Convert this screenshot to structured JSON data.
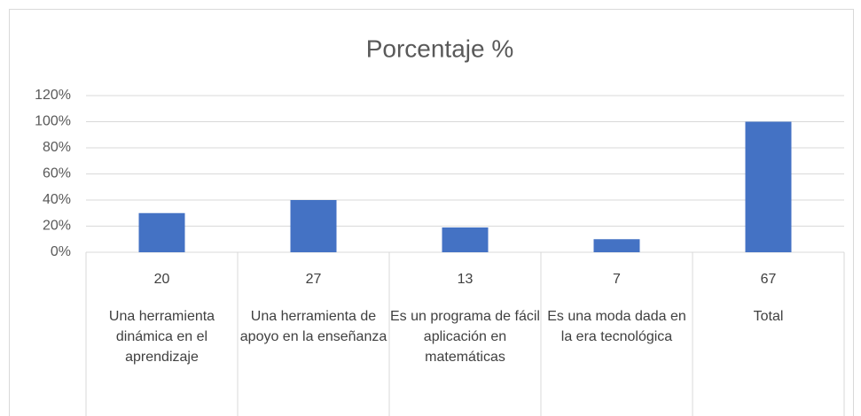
{
  "chart_data": {
    "type": "bar",
    "title": "Porcentaje  %",
    "counts": [
      20,
      27,
      13,
      7,
      67
    ],
    "categories": [
      "Una herramienta dinámica en el aprendizaje",
      "Una herramienta de apoyo en la enseñanza",
      "Es un programa de fácil aplicación en matemáticas",
      "Es una moda dada en la era tecnológica",
      "Total"
    ],
    "values": [
      30,
      40,
      19,
      10,
      100
    ],
    "color": "#4472c4",
    "ylim": [
      0,
      120
    ],
    "yticks": [
      {
        "value": 0,
        "label": "0%"
      },
      {
        "value": 20,
        "label": "20%"
      },
      {
        "value": 40,
        "label": "40%"
      },
      {
        "value": 60,
        "label": "60%"
      },
      {
        "value": 80,
        "label": "80%"
      },
      {
        "value": 100,
        "label": "100%"
      },
      {
        "value": 120,
        "label": "120%"
      }
    ],
    "grid": true
  }
}
